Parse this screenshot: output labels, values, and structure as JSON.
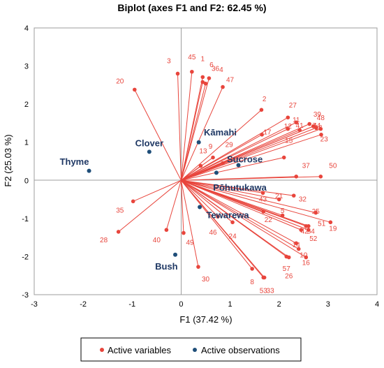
{
  "chart_data": {
    "type": "scatter",
    "title": "Biplot (axes F1 and F2: 62.45 %)",
    "xlabel": "F1 (37.42 %)",
    "ylabel": "F2 (25.03 %)",
    "xlim": [
      -3,
      4
    ],
    "ylim": [
      -3,
      4
    ],
    "xticks": [
      -3,
      -2,
      -1,
      0,
      1,
      2,
      3,
      4
    ],
    "yticks": [
      -3,
      -2,
      -1,
      0,
      1,
      2,
      3,
      4
    ],
    "colors": {
      "variables": "#e8453c",
      "observations": "#1f4e79"
    },
    "legend": {
      "placement": "bottom",
      "entries": [
        {
          "label": "Active variables",
          "color": "#e8453c"
        },
        {
          "label": "Active observations",
          "color": "#1f4e79"
        }
      ]
    },
    "variables": [
      {
        "label": "1",
        "x": 0.44,
        "y": 2.71,
        "lx": 0.44,
        "ly": 3.2
      },
      {
        "label": "2",
        "x": 1.64,
        "y": 1.85,
        "lx": 1.7,
        "ly": 2.15
      },
      {
        "label": "3",
        "x": -0.07,
        "y": 2.8,
        "lx": -0.25,
        "ly": 3.15
      },
      {
        "label": "4",
        "x": 0.57,
        "y": 2.68,
        "lx": 0.82,
        "ly": 2.92
      },
      {
        "label": "5",
        "x": 2.07,
        "y": -0.92,
        "lx": 2.07,
        "ly": -0.78
      },
      {
        "label": "6",
        "x": 0.44,
        "y": 2.58,
        "lx": 0.62,
        "ly": 3.05
      },
      {
        "label": "8",
        "x": 1.45,
        "y": -2.32,
        "lx": 1.45,
        "ly": -2.65
      },
      {
        "label": "11",
        "x": 2.35,
        "y": 1.52,
        "lx": 2.35,
        "ly": 1.6
      },
      {
        "label": "12",
        "x": 2.18,
        "y": 1.35,
        "lx": 2.18,
        "ly": 1.43
      },
      {
        "label": "13",
        "x": 0.4,
        "y": 0.38,
        "lx": 0.45,
        "ly": 0.78
      },
      {
        "label": "14",
        "x": 2.35,
        "y": -1.65,
        "lx": 2.35,
        "ly": -1.68
      },
      {
        "label": "15",
        "x": 2.1,
        "y": 0.6,
        "lx": 2.2,
        "ly": 1.06
      },
      {
        "label": "16",
        "x": 2.55,
        "y": -2.02,
        "lx": 2.55,
        "ly": -2.15
      },
      {
        "label": "17",
        "x": 1.65,
        "y": 1.2,
        "lx": 1.76,
        "ly": 1.28
      },
      {
        "label": "18",
        "x": 2.76,
        "y": 1.38,
        "lx": 2.8,
        "ly": 1.4
      },
      {
        "label": "19",
        "x": 3.05,
        "y": -1.1,
        "lx": 3.1,
        "ly": -1.25
      },
      {
        "label": "20",
        "x": -0.95,
        "y": 2.38,
        "lx": -1.25,
        "ly": 2.62
      },
      {
        "label": "22",
        "x": 1.68,
        "y": -0.82,
        "lx": 1.78,
        "ly": -1.02
      },
      {
        "label": "23",
        "x": 2.86,
        "y": 1.2,
        "lx": 2.92,
        "ly": 1.1
      },
      {
        "label": "24",
        "x": 1.05,
        "y": -1.1,
        "lx": 1.05,
        "ly": -1.45
      },
      {
        "label": "25",
        "x": 2.75,
        "y": -0.85,
        "lx": 2.75,
        "ly": -0.8
      },
      {
        "label": "26",
        "x": 2.2,
        "y": -2.02,
        "lx": 2.2,
        "ly": -2.5
      },
      {
        "label": "27",
        "x": 2.18,
        "y": 1.65,
        "lx": 2.28,
        "ly": 1.98
      },
      {
        "label": "28",
        "x": -1.28,
        "y": -1.35,
        "lx": -1.58,
        "ly": -1.55
      },
      {
        "label": "30",
        "x": 0.35,
        "y": -2.27,
        "lx": 0.5,
        "ly": -2.58
      },
      {
        "label": "32",
        "x": 2.3,
        "y": -0.4,
        "lx": 2.48,
        "ly": -0.48
      },
      {
        "label": "33",
        "x": 1.7,
        "y": -2.55,
        "lx": 1.82,
        "ly": -2.88
      },
      {
        "label": "35",
        "x": -0.98,
        "y": -0.55,
        "lx": -1.25,
        "ly": -0.77
      },
      {
        "label": "36",
        "x": 0.5,
        "y": 2.54,
        "lx": 0.7,
        "ly": 2.95
      },
      {
        "label": "37",
        "x": 2.35,
        "y": 0.1,
        "lx": 2.55,
        "ly": 0.4
      },
      {
        "label": "39",
        "x": 2.62,
        "y": 1.48,
        "lx": 2.78,
        "ly": 1.75
      },
      {
        "label": "40",
        "x": -0.3,
        "y": -1.3,
        "lx": -0.5,
        "ly": -1.55
      },
      {
        "label": "41",
        "x": 2.42,
        "y": 1.32,
        "lx": 2.42,
        "ly": 1.45
      },
      {
        "label": "43",
        "x": 1.67,
        "y": -0.33,
        "lx": 1.67,
        "ly": -0.48
      },
      {
        "label": "44",
        "x": 2.7,
        "y": 1.42,
        "lx": 2.77,
        "ly": 1.45
      },
      {
        "label": "45",
        "x": 0.22,
        "y": 2.85,
        "lx": 0.22,
        "ly": 3.25
      },
      {
        "label": "47",
        "x": 0.85,
        "y": 2.45,
        "lx": 1.0,
        "ly": 2.65
      },
      {
        "label": "48",
        "x": 2.85,
        "y": 1.35,
        "lx": 2.85,
        "ly": 1.65
      },
      {
        "label": "49",
        "x": 0.05,
        "y": -1.38,
        "lx": 0.18,
        "ly": -1.62
      },
      {
        "label": "50",
        "x": 2.85,
        "y": 0.1,
        "lx": 3.1,
        "ly": 0.4
      },
      {
        "label": "51",
        "x": 2.6,
        "y": -1.3,
        "lx": 2.87,
        "ly": -1.12
      },
      {
        "label": "52",
        "x": 2.6,
        "y": -1.2,
        "lx": 2.7,
        "ly": -1.52
      },
      {
        "label": "53",
        "x": 1.68,
        "y": -2.55,
        "lx": 1.68,
        "ly": -2.88
      },
      {
        "label": "54",
        "x": 2.55,
        "y": -1.2,
        "lx": 2.65,
        "ly": -1.32
      },
      {
        "label": "57",
        "x": 2.15,
        "y": -2.0,
        "lx": 2.15,
        "ly": -2.3
      },
      {
        "label": "9",
        "x": 0.65,
        "y": 0.6,
        "lx": 0.6,
        "ly": 0.9
      },
      {
        "label": "46",
        "x": 0.75,
        "y": -0.95,
        "lx": 0.65,
        "ly": -1.35
      },
      {
        "label": "29",
        "x": 0.85,
        "y": 0.45,
        "lx": 0.98,
        "ly": 0.95
      },
      {
        "label": "10",
        "x": 2.4,
        "y": -1.8,
        "lx": 2.5,
        "ly": -1.95
      },
      {
        "label": "42",
        "x": 2.45,
        "y": -1.3,
        "lx": 2.52,
        "ly": -1.32
      },
      {
        "label": "7",
        "x": 2.7,
        "y": 1.42,
        "lx": 2.72,
        "ly": 1.45
      },
      {
        "label": "21",
        "x": 2.0,
        "y": -0.5,
        "lx": 2.0,
        "ly": -0.4
      }
    ],
    "observations": [
      {
        "label": "Thyme",
        "x": -1.88,
        "y": 0.25,
        "lx": -2.18,
        "ly": 0.48
      },
      {
        "label": "Clover",
        "x": -0.65,
        "y": 0.75,
        "lx": -0.65,
        "ly": 0.97
      },
      {
        "label": "Kāmahi",
        "x": 0.36,
        "y": 1.0,
        "lx": 0.8,
        "ly": 1.25
      },
      {
        "label": "Sucrose",
        "x": 1.17,
        "y": 0.4,
        "lx": 1.3,
        "ly": 0.55
      },
      {
        "label": "Pōhutukawa",
        "x": 0.72,
        "y": 0.2,
        "lx": 1.2,
        "ly": -0.2
      },
      {
        "label": "Tewarewa",
        "x": 0.38,
        "y": -0.7,
        "lx": 0.95,
        "ly": -0.92
      },
      {
        "label": "Bush",
        "x": -0.12,
        "y": -1.95,
        "lx": -0.3,
        "ly": -2.27
      }
    ]
  }
}
